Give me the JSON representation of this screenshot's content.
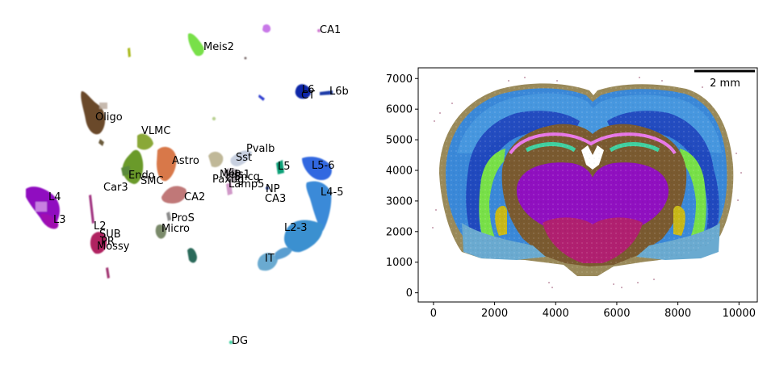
{
  "chart_data": [
    {
      "type": "scatter",
      "panel": "umap-embedding",
      "axes_visible": false,
      "grid": false,
      "cluster_labels": [
        {
          "text": "CA1",
          "color": "#d070e0"
        },
        {
          "text": "Meis2",
          "color": "#78e048"
        },
        {
          "text": "L6",
          "color": "#1028a8"
        },
        {
          "text": "CT",
          "color": "#1028a8"
        },
        {
          "text": "L6b",
          "color": "#1a3aa8"
        },
        {
          "text": "Oligo",
          "color": "#6a4a2a"
        },
        {
          "text": "VLMC",
          "color": "#8aa838"
        },
        {
          "text": "Pvalb",
          "color": "#a8b8d8"
        },
        {
          "text": "Sst",
          "color": "#c0b898"
        },
        {
          "text": "Astro",
          "color": "#d8784a"
        },
        {
          "text": "L5",
          "color": "#10a078"
        },
        {
          "text": "L5-6",
          "color": "#3068e0"
        },
        {
          "text": "Endo",
          "color": "#6a9a2a"
        },
        {
          "text": "SMC",
          "color": "#5a8a3a"
        },
        {
          "text": "Vip",
          "color": "#c8a8c8"
        },
        {
          "text": "Sncg",
          "color": "#a898b8"
        },
        {
          "text": "Meis1",
          "color": "#b8a8b8"
        },
        {
          "text": "Paxbg",
          "color": "#b0a0a8"
        },
        {
          "text": "Lamp5",
          "color": "#d098c8"
        },
        {
          "text": "Car3",
          "color": "#7a9a4a"
        },
        {
          "text": "NP",
          "color": "#5878c8"
        },
        {
          "text": "CA2",
          "color": "#c07878"
        },
        {
          "text": "CA3",
          "color": "#4870c8"
        },
        {
          "text": "L4-5",
          "color": "#3a8ad8"
        },
        {
          "text": "L4",
          "color": "#9010c0"
        },
        {
          "text": "L3",
          "color": "#a010b0"
        },
        {
          "text": "ProS",
          "color": "#888888"
        },
        {
          "text": "Micro",
          "color": "#7a8a6a"
        },
        {
          "text": "L2-3",
          "color": "#3a90d0"
        },
        {
          "text": "L2",
          "color": "#a03080"
        },
        {
          "text": "SUB",
          "color": "#a82870"
        },
        {
          "text": "PR",
          "color": "#b02060"
        },
        {
          "text": "Mossy",
          "color": "#c02068"
        },
        {
          "text": "IT",
          "color": "#6aaad0"
        },
        {
          "text": "DG",
          "color": "#40d0a0"
        }
      ]
    },
    {
      "type": "scatter",
      "panel": "spatial-section",
      "grid": false,
      "xlim": [
        -500,
        10600
      ],
      "ylim": [
        -300,
        7350
      ],
      "xticks": [
        {
          "value": 0,
          "label": "0"
        },
        {
          "value": 2000,
          "label": "2000"
        },
        {
          "value": 4000,
          "label": "4000"
        },
        {
          "value": 6000,
          "label": "6000"
        },
        {
          "value": 8000,
          "label": "8000"
        },
        {
          "value": 10000,
          "label": "10000"
        }
      ],
      "yticks": [
        {
          "value": 0,
          "label": "0"
        },
        {
          "value": 1000,
          "label": "1000"
        },
        {
          "value": 2000,
          "label": "2000"
        },
        {
          "value": 3000,
          "label": "3000"
        },
        {
          "value": 4000,
          "label": "4000"
        },
        {
          "value": 5000,
          "label": "5000"
        },
        {
          "value": 6000,
          "label": "6000"
        },
        {
          "value": 7000,
          "label": "7000"
        }
      ],
      "scalebar": {
        "label": "2 mm",
        "length_mm": 2,
        "placement": "top-right"
      }
    }
  ]
}
